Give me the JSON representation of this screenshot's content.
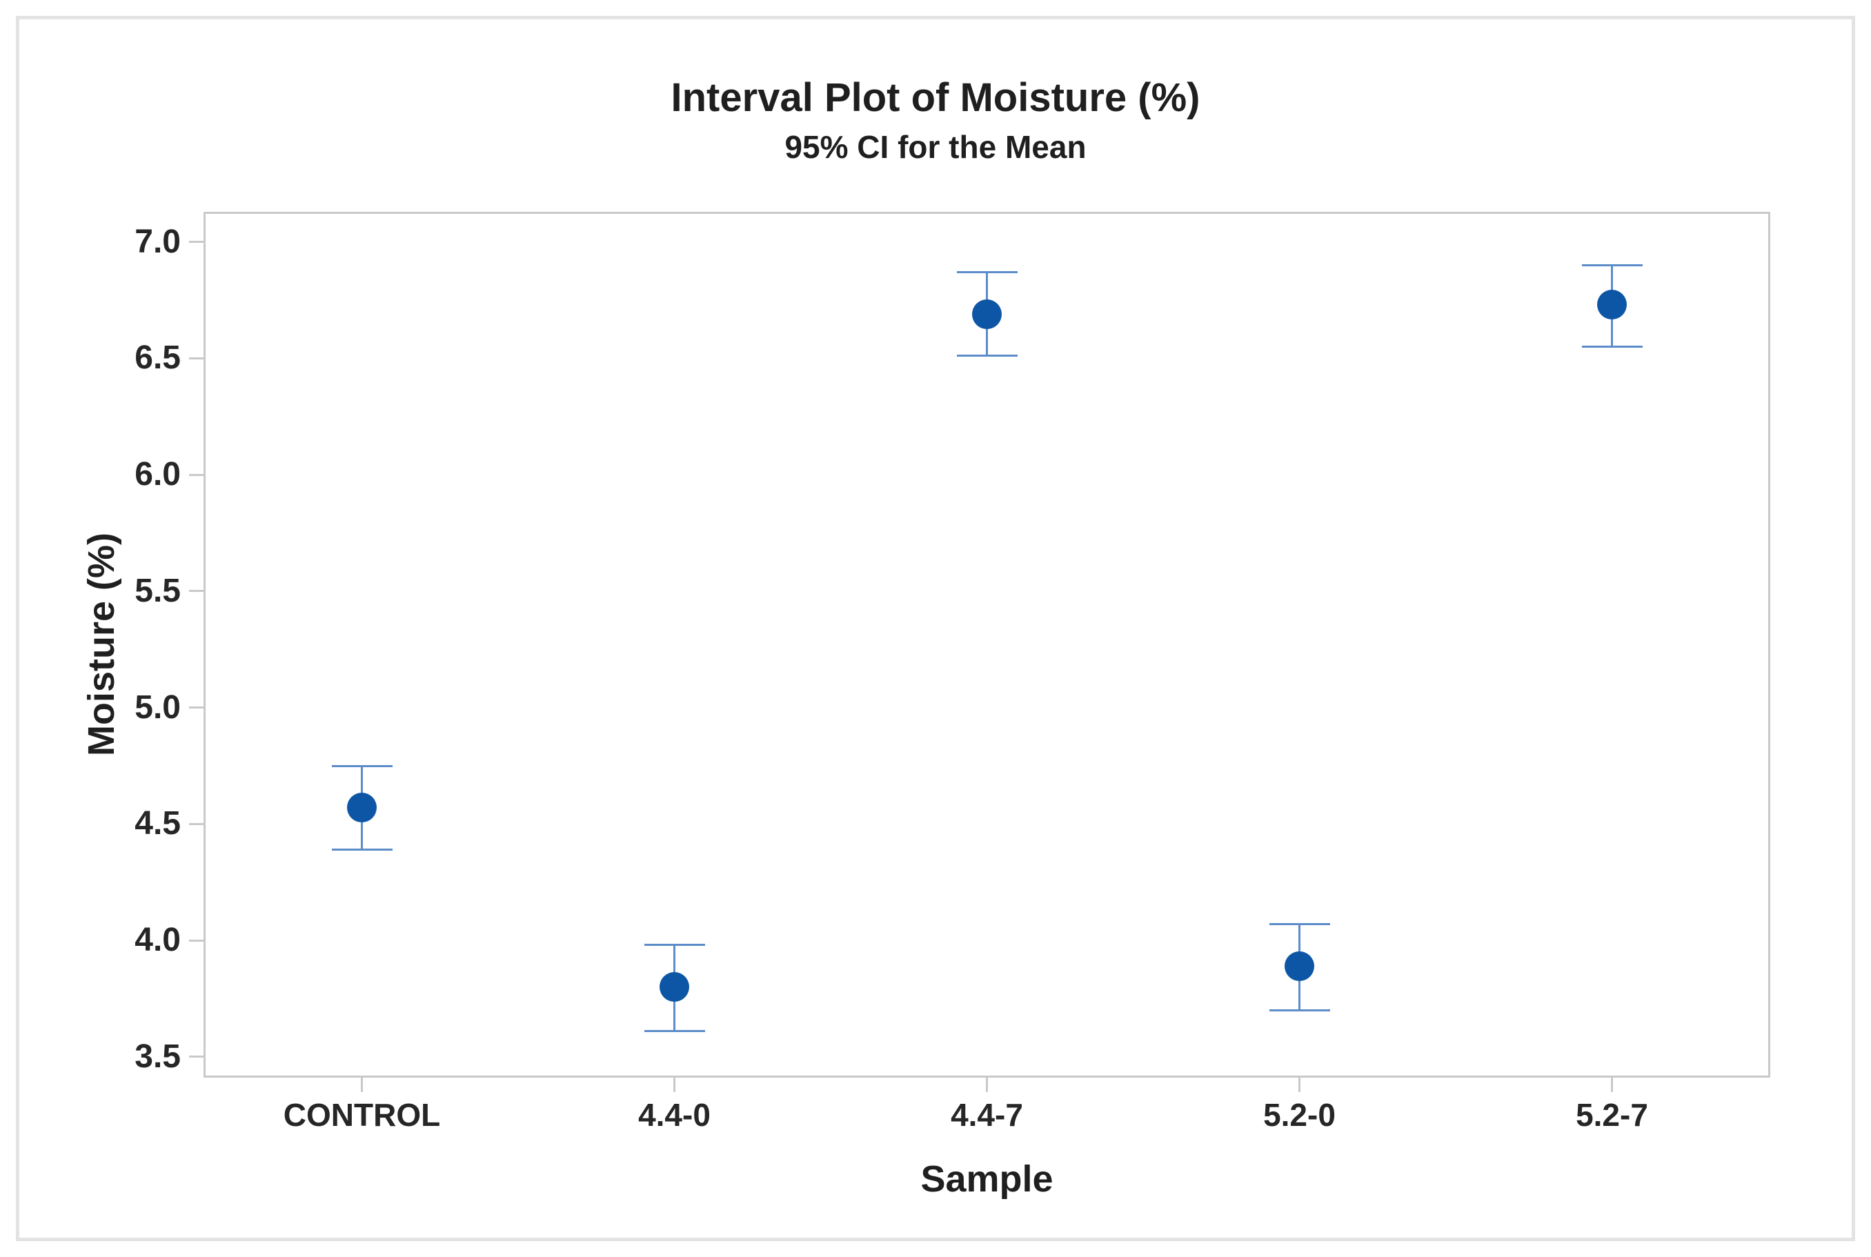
{
  "figure": {
    "title": "Interval Plot of Moisture (%)",
    "subtitle": "95% CI for the Mean"
  },
  "chart_data": {
    "type": "interval",
    "title": "Interval Plot of Moisture (%)",
    "subtitle": "95% CI for the Mean",
    "xlabel": "Sample",
    "ylabel": "Moisture (%)",
    "categories": [
      "CONTROL",
      "4.4-0",
      "4.4-7",
      "5.2-0",
      "5.2-7"
    ],
    "series": [
      {
        "name": "Mean",
        "values": [
          4.57,
          3.8,
          6.69,
          3.89,
          6.73
        ]
      }
    ],
    "ci_low": [
      4.39,
      3.61,
      6.51,
      3.7,
      6.55
    ],
    "ci_high": [
      4.75,
      3.98,
      6.87,
      4.07,
      6.9
    ],
    "yticks": [
      3.5,
      4.0,
      4.5,
      5.0,
      5.5,
      6.0,
      6.5,
      7.0
    ],
    "ylim": [
      3.42,
      7.12
    ],
    "grid": false,
    "legend": "none",
    "colors": {
      "mean_marker": "#0d56a5",
      "interval_line": "#5c8cc9",
      "axis": "#c9c9c9",
      "text": "#1f1f1f",
      "frame": "#e3e3e3"
    }
  }
}
